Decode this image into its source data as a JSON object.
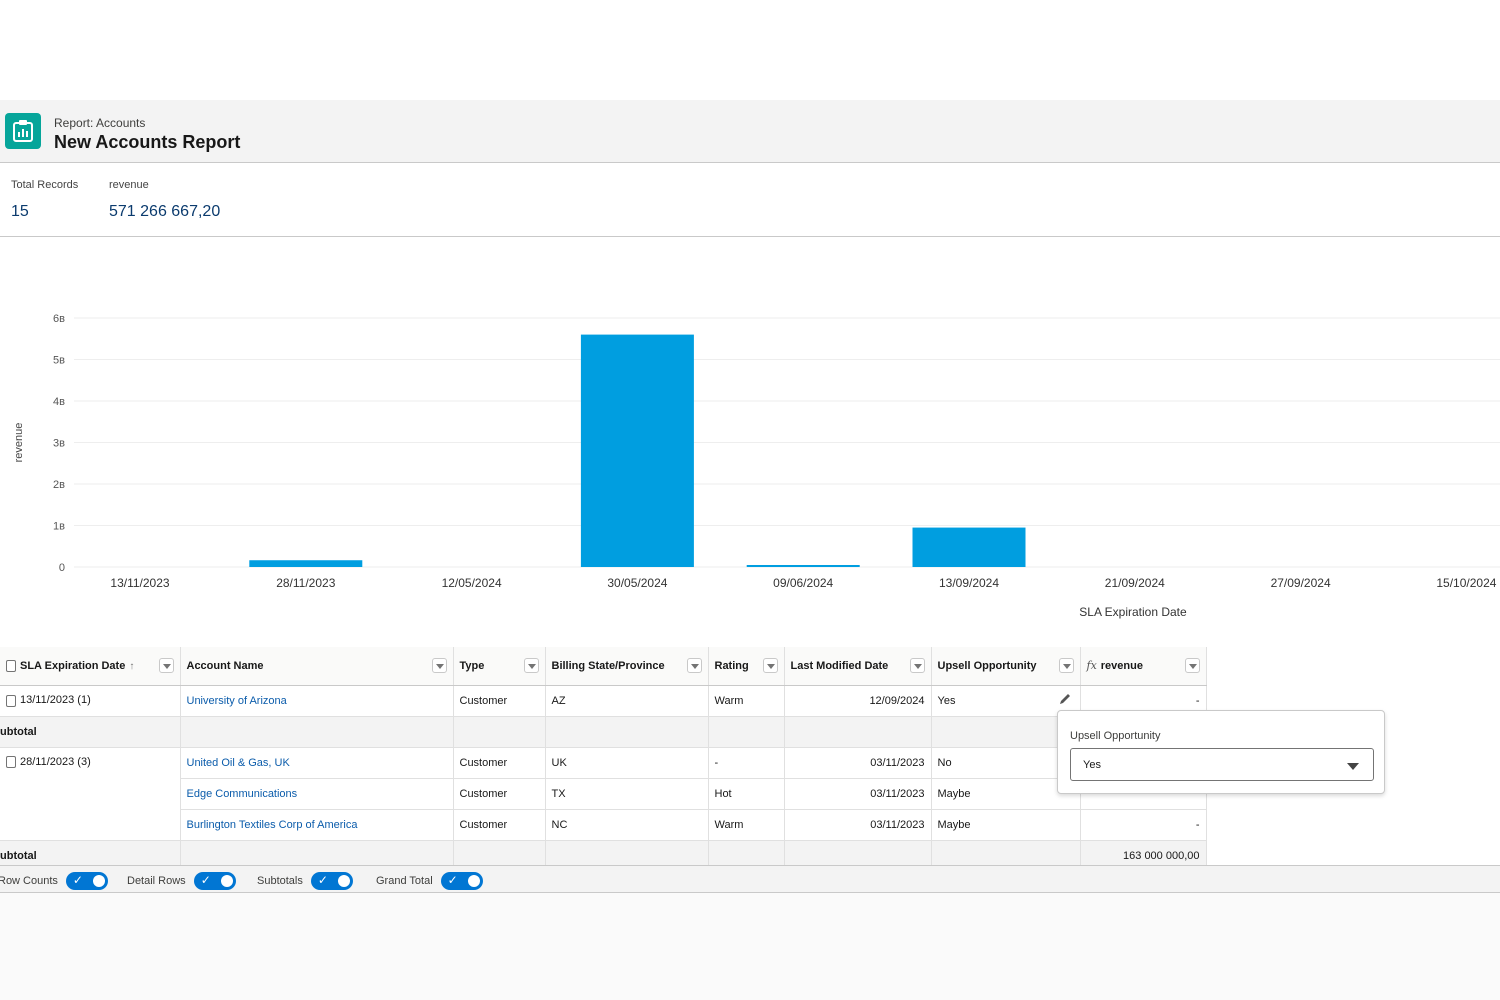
{
  "header": {
    "subtitle": "Report: Accounts",
    "title": "New Accounts Report",
    "icon": "report-icon"
  },
  "summary": {
    "total_records_label": "Total Records",
    "total_records_value": "15",
    "revenue_label": "revenue",
    "revenue_value": "571 266 667,20"
  },
  "chart_data": {
    "type": "bar",
    "categories": [
      "13/11/2023",
      "28/11/2023",
      "12/05/2024",
      "30/05/2024",
      "09/06/2024",
      "13/09/2024",
      "21/09/2024",
      "27/09/2024",
      "15/10/2024"
    ],
    "values": [
      0,
      0.163,
      0,
      5.6,
      0.03,
      0.95,
      0,
      0,
      0
    ],
    "value_unit": "billions",
    "y_ticks": [
      "0",
      "1в",
      "2в",
      "3в",
      "4в",
      "5в",
      "6в"
    ],
    "ylim": [
      0,
      6
    ],
    "xlabel": "SLA Expiration Date",
    "ylabel": "revenue",
    "bar_color": "#009ee0",
    "grid": true
  },
  "table": {
    "columns": [
      {
        "label": "SLA Expiration Date",
        "sort": "↑"
      },
      {
        "label": "Account Name"
      },
      {
        "label": "Type"
      },
      {
        "label": "Billing State/Province"
      },
      {
        "label": "Rating"
      },
      {
        "label": "Last Modified Date"
      },
      {
        "label": "Upsell Opportunity"
      },
      {
        "label": "revenue",
        "fx": "fx"
      }
    ],
    "subtotal_label": "ubtotal",
    "groups": [
      {
        "group": "13/11/2023 (1)",
        "rows": [
          {
            "account": "University of Arizona",
            "type": "Customer",
            "state": "AZ",
            "rating": "Warm",
            "modified": "12/09/2024",
            "upsell": "Yes",
            "revenue": "-"
          }
        ],
        "subtotal": ""
      },
      {
        "group": "28/11/2023 (3)",
        "rows": [
          {
            "account": "United Oil & Gas, UK",
            "type": "Customer",
            "state": "UK",
            "rating": "-",
            "modified": "03/11/2023",
            "upsell": "No",
            "revenue": ""
          },
          {
            "account": "Edge Communications",
            "type": "Customer",
            "state": "TX",
            "rating": "Hot",
            "modified": "03/11/2023",
            "upsell": "Maybe",
            "revenue": ""
          },
          {
            "account": "Burlington Textiles Corp of America",
            "type": "Customer",
            "state": "NC",
            "rating": "Warm",
            "modified": "03/11/2023",
            "upsell": "Maybe",
            "revenue": "-"
          }
        ],
        "subtotal": "163 000 000,00"
      }
    ]
  },
  "popover": {
    "label": "Upsell Opportunity",
    "selected": "Yes"
  },
  "footer": {
    "row_counts": "Row Counts",
    "detail_rows": "Detail Rows",
    "subtotals": "Subtotals",
    "grand_total": "Grand Total"
  }
}
